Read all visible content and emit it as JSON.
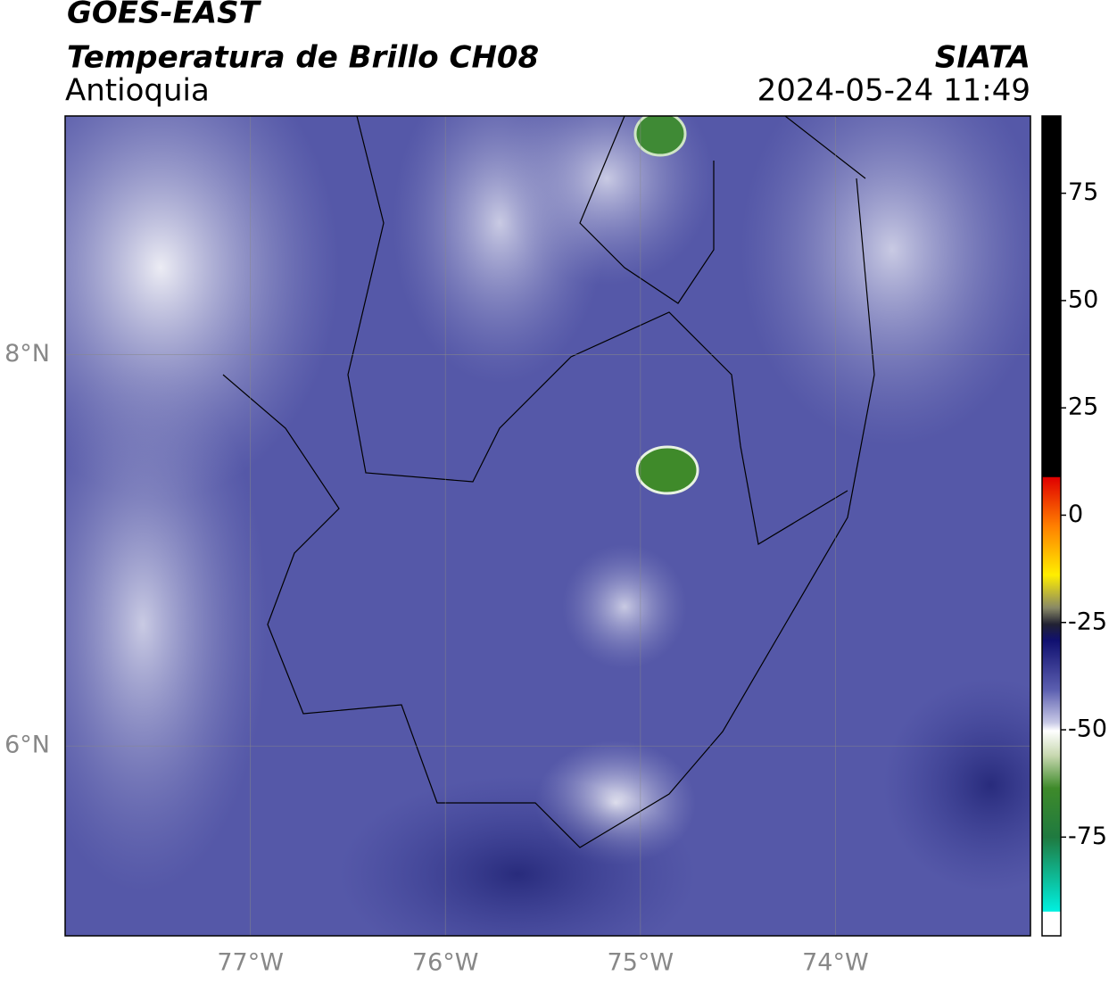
{
  "chart_data": {
    "type": "map",
    "title": "GOES-EAST",
    "subtitle": "Temperatura de Brillo CH08",
    "region": "Antioquia",
    "source": "SIATA",
    "timestamp": "2024-05-24 11:49",
    "xlim": [
      -77.95,
      -73.0
    ],
    "ylim": [
      5.03,
      9.22
    ],
    "xticks": [
      {
        "value": -77,
        "label": "77°W"
      },
      {
        "value": -76,
        "label": "76°W"
      },
      {
        "value": -75,
        "label": "75°W"
      },
      {
        "value": -74,
        "label": "74°W"
      }
    ],
    "yticks": [
      {
        "value": 8,
        "label": "8°N"
      },
      {
        "value": 6,
        "label": "6°N"
      }
    ],
    "grid": true,
    "colorbar": {
      "clim": [
        -98,
        93
      ],
      "ticks": [
        75,
        50,
        25,
        0,
        -25,
        -50,
        -75
      ]
    }
  }
}
